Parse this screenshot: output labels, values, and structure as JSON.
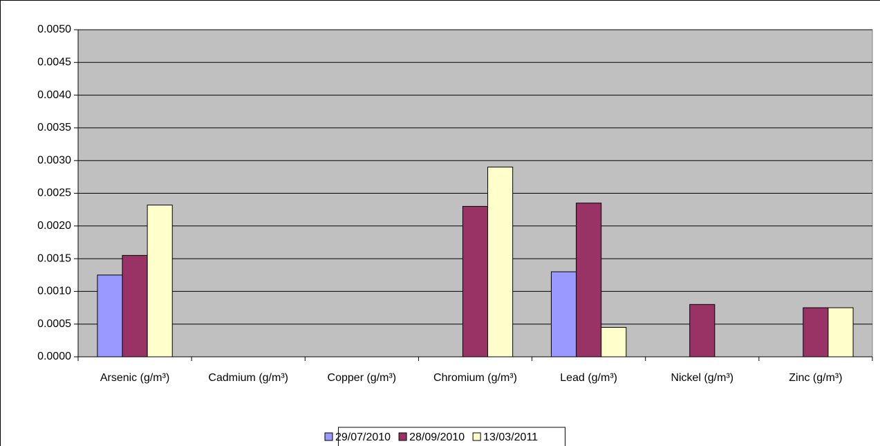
{
  "chart_data": {
    "type": "bar",
    "categories": [
      "Arsenic (g/m³)",
      "Cadmium (g/m³)",
      "Copper (g/m³)",
      "Chromium (g/m³)",
      "Lead (g/m³)",
      "Nickel (g/m³)",
      "Zinc (g/m³)"
    ],
    "series": [
      {
        "name": "29/07/2010",
        "color": "#9999ff",
        "values": [
          0.00125,
          null,
          null,
          null,
          0.0013,
          null,
          null
        ]
      },
      {
        "name": "28/09/2010",
        "color": "#993366",
        "values": [
          0.00155,
          null,
          null,
          0.0023,
          0.00235,
          0.0008,
          0.00075
        ]
      },
      {
        "name": "13/03/2011",
        "color": "#ffffcc",
        "values": [
          0.00232,
          null,
          null,
          0.0029,
          0.00045,
          null,
          0.00075
        ]
      }
    ],
    "ylim": [
      0,
      0.005
    ],
    "yticks": [
      {
        "value": 0,
        "label": "0.0000"
      },
      {
        "value": 0.0005,
        "label": "0.0005"
      },
      {
        "value": 0.001,
        "label": "0.0010"
      },
      {
        "value": 0.0015,
        "label": "0.0015"
      },
      {
        "value": 0.002,
        "label": "0.0020"
      },
      {
        "value": 0.0025,
        "label": "0.0025"
      },
      {
        "value": 0.003,
        "label": "0.0030"
      },
      {
        "value": 0.0035,
        "label": "0.0035"
      },
      {
        "value": 0.004,
        "label": "0.0040"
      },
      {
        "value": 0.0045,
        "label": "0.0045"
      },
      {
        "value": 0.005,
        "label": "0.0050"
      }
    ],
    "grid": true,
    "plot_background": "#c0c0c0",
    "legend": "bottom"
  }
}
